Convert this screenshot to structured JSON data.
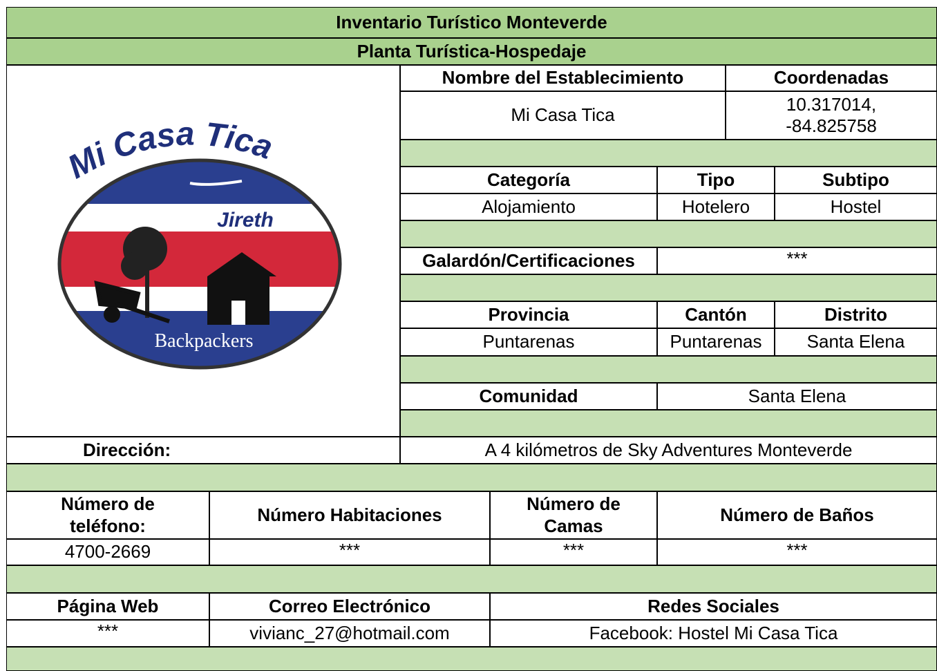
{
  "header": {
    "title": "Inventario Turístico Monteverde",
    "subtitle": "Planta Turística-Hospedaje"
  },
  "logo": {
    "title": "Mi Casa Tica",
    "name": "Jireth",
    "tagline": "Backpackers"
  },
  "establishment": {
    "name_label": "Nombre del Establecimiento",
    "name": "Mi Casa Tica",
    "coordinates_label": "Coordenadas",
    "coordinates": "10.317014, -84.825758"
  },
  "classification": {
    "labels": [
      "Categoría",
      "Tipo",
      "Subtipo"
    ],
    "values": [
      "Alojamiento",
      "Hotelero",
      "Hostel"
    ]
  },
  "awards": {
    "label": "Galardón/Certificaciones",
    "value": "***"
  },
  "location": {
    "labels": [
      "Provincia",
      "Cantón",
      "Distrito"
    ],
    "values": [
      "Puntarenas",
      "Puntarenas",
      "Santa Elena"
    ],
    "community_label": "Comunidad",
    "community": "Santa Elena",
    "address_label": "Dirección:",
    "address": "A 4 kilómetros de Sky Adventures Monteverde"
  },
  "capacity": {
    "labels": [
      "Número de teléfono:",
      "Número Habitaciones",
      "Número de Camas",
      "Número de Baños"
    ],
    "values": [
      "4700-2669",
      "***",
      "***",
      "***"
    ]
  },
  "contact": {
    "labels": [
      "Página Web",
      "Correo Electrónico",
      "Redes Sociales"
    ],
    "values": [
      "***",
      "vivianc_27@hotmail.com",
      "Facebook: Hostel Mi Casa Tica"
    ]
  }
}
